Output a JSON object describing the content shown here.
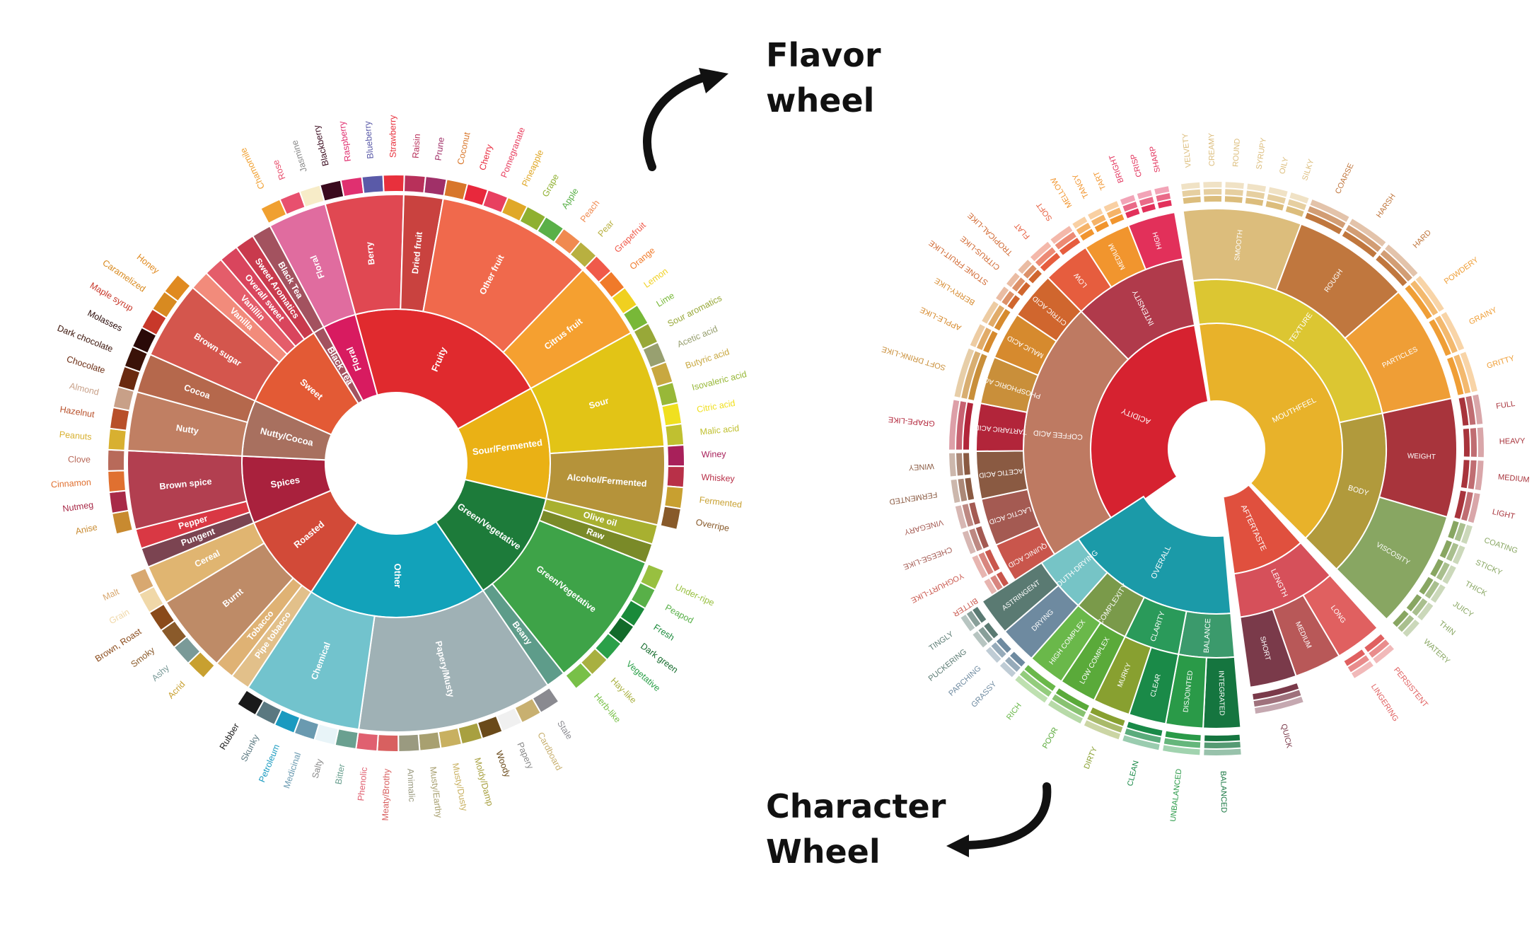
{
  "captions": {
    "flavor_line1": "Flavor",
    "flavor_line2": "wheel",
    "character_line1": "Character",
    "character_line2": "Wheel"
  },
  "flavor_wheel": {
    "groups": [
      {
        "label": "Floral",
        "color": "#d81b60",
        "subs": [
          {
            "label": "Floral",
            "color": "#e06c9f",
            "leaves": [
              {
                "label": "Chamomile",
                "color": "#f0a030"
              },
              {
                "label": "Rose",
                "color": "#e8506e"
              },
              {
                "label": "Jasmine",
                "color": "#f7ecc8"
              }
            ]
          }
        ]
      },
      {
        "label": "Fruity",
        "color": "#e02a2e",
        "subs": [
          {
            "label": "Berry",
            "color": "#e04852",
            "leaves": [
              {
                "label": "Blackberry",
                "color": "#3a0a1e"
              },
              {
                "label": "Raspberry",
                "color": "#e03070"
              },
              {
                "label": "Blueberry",
                "color": "#5a5aa8"
              },
              {
                "label": "Strawberry",
                "color": "#e8303c"
              }
            ]
          },
          {
            "label": "Dried fruit",
            "color": "#c9423f",
            "leaves": [
              {
                "label": "Raisin",
                "color": "#b8305a"
              },
              {
                "label": "Prune",
                "color": "#a03068"
              }
            ]
          },
          {
            "label": "Other fruit",
            "color": "#f0694c",
            "leaves": [
              {
                "label": "Coconut",
                "color": "#d8762a"
              },
              {
                "label": "Cherry",
                "color": "#e8283c"
              },
              {
                "label": "Pomegranate",
                "color": "#e84060"
              },
              {
                "label": "Pineapple",
                "color": "#e0a828"
              },
              {
                "label": "Grape",
                "color": "#8fb030"
              },
              {
                "label": "Apple",
                "color": "#5ab048"
              },
              {
                "label": "Peach",
                "color": "#f08a50"
              },
              {
                "label": "Pear",
                "color": "#b8b040"
              }
            ]
          },
          {
            "label": "Citrus fruit",
            "color": "#f5a030",
            "leaves": [
              {
                "label": "Grapefruit",
                "color": "#f05a4a"
              },
              {
                "label": "Orange",
                "color": "#f07a2a"
              },
              {
                "label": "Lemon",
                "color": "#f0d020"
              },
              {
                "label": "Lime",
                "color": "#78b838"
              }
            ]
          }
        ]
      },
      {
        "label": "Sour/Fermented",
        "color": "#eab115",
        "subs": [
          {
            "label": "Sour",
            "color": "#e2c416",
            "leaves": [
              {
                "label": "Sour aromatics",
                "color": "#98a838"
              },
              {
                "label": "Acetic acid",
                "color": "#98a070"
              },
              {
                "label": "Butyric acid",
                "color": "#c8a840"
              },
              {
                "label": "Isovaleric acid",
                "color": "#98b838"
              },
              {
                "label": "Citric acid",
                "color": "#f0e020"
              },
              {
                "label": "Malic acid",
                "color": "#c0c030"
              }
            ]
          },
          {
            "label": "Alcohol/Fermented",
            "color": "#b5933a",
            "leaves": [
              {
                "label": "Winey",
                "color": "#a8205a"
              },
              {
                "label": "Whiskey",
                "color": "#b83048"
              },
              {
                "label": "Fermented",
                "color": "#c8a030"
              },
              {
                "label": "Overripe",
                "color": "#885a2a"
              }
            ]
          }
        ]
      },
      {
        "label": "Green/Vegetative",
        "color": "#1d7b3a",
        "subs": [
          {
            "label": "Olive oil",
            "color": "#a8b030",
            "leaves": []
          },
          {
            "label": "Raw",
            "color": "#7a8a28",
            "leaves": []
          },
          {
            "label": "Green/Vegetative",
            "color": "#3ea348",
            "leaves": [
              {
                "label": "Under-ripe",
                "color": "#98c040"
              },
              {
                "label": "Peapod",
                "color": "#58b048"
              },
              {
                "label": "Fresh",
                "color": "#1a8a3a"
              },
              {
                "label": "Dark green",
                "color": "#126a2a"
              },
              {
                "label": "Vegetative",
                "color": "#2aa048"
              },
              {
                "label": "Hay-like",
                "color": "#a8b040"
              },
              {
                "label": "Herb-like",
                "color": "#78c048"
              }
            ]
          },
          {
            "label": "Beany",
            "color": "#5e9c8a",
            "leaves": []
          }
        ]
      },
      {
        "label": "Other",
        "color": "#12a2ba",
        "subs": [
          {
            "label": "Papery/Musty",
            "color": "#9fb1b5",
            "leaves": [
              {
                "label": "Stale",
                "color": "#8a8a90"
              },
              {
                "label": "Cardboard",
                "color": "#c8b070"
              },
              {
                "label": "Papery",
                "color": "#f0f0f0"
              },
              {
                "label": "Woody",
                "color": "#6a4a1a"
              },
              {
                "label": "Moldy/Damp",
                "color": "#a8a040"
              },
              {
                "label": "Musty/Dusty",
                "color": "#c8b060"
              },
              {
                "label": "Musty/Earthy",
                "color": "#a8a070"
              },
              {
                "label": "Animalic",
                "color": "#9a9a80"
              },
              {
                "label": "Meaty/Brothy",
                "color": "#d86060"
              },
              {
                "label": "Phenolic",
                "color": "#e06070"
              }
            ]
          },
          {
            "label": "Chemical",
            "color": "#72c3cd",
            "leaves": [
              {
                "label": "Bitter",
                "color": "#6aa090"
              },
              {
                "label": "Salty",
                "color": "#e8f4f8"
              },
              {
                "label": "Medicinal",
                "color": "#6a9ab0"
              },
              {
                "label": "Petroleum",
                "color": "#1a9ac0"
              },
              {
                "label": "Skunky",
                "color": "#5a7880"
              },
              {
                "label": "Rubber",
                "color": "#1a1a1a"
              }
            ]
          }
        ]
      },
      {
        "label": "Roasted",
        "color": "#d24a38",
        "subs": [
          {
            "label": "Pipe tobacco",
            "color": "#e2c08a",
            "leaves": []
          },
          {
            "label": "Tobacco",
            "color": "#dfb274",
            "leaves": []
          },
          {
            "label": "Burnt",
            "color": "#be8b67",
            "leaves": [
              {
                "label": "Acrid",
                "color": "#c8a030"
              },
              {
                "label": "Ashy",
                "color": "#7a9a98"
              },
              {
                "label": "Smoky",
                "color": "#8a5a2a"
              },
              {
                "label": "Brown, Roast",
                "color": "#8a4a1a"
              }
            ]
          },
          {
            "label": "Cereal",
            "color": "#e0b571",
            "leaves": [
              {
                "label": "Grain",
                "color": "#f0d8a8"
              },
              {
                "label": "Malt",
                "color": "#d8a870"
              }
            ]
          }
        ]
      },
      {
        "label": "Spices",
        "color": "#a9213d",
        "subs": [
          {
            "label": "Pungent",
            "color": "#7b4451",
            "leaves": []
          },
          {
            "label": "Pepper",
            "color": "#d93844",
            "leaves": []
          },
          {
            "label": "Brown spice",
            "color": "#b23f50",
            "leaves": [
              {
                "label": "Anise",
                "color": "#c88a30"
              },
              {
                "label": "Nutmeg",
                "color": "#a82a48"
              },
              {
                "label": "Cinnamon",
                "color": "#e07030"
              },
              {
                "label": "Clove",
                "color": "#b86a5a"
              }
            ]
          }
        ]
      },
      {
        "label": "Nutty/Cocoa",
        "color": "#a8705f",
        "subs": [
          {
            "label": "Nutty",
            "color": "#c07f63",
            "leaves": [
              {
                "label": "Peanuts",
                "color": "#d8b030"
              },
              {
                "label": "Hazelnut",
                "color": "#b8502a"
              },
              {
                "label": "Almond",
                "color": "#c8a088"
              }
            ]
          },
          {
            "label": "Cocoa",
            "color": "#b5684c",
            "leaves": [
              {
                "label": "Chocolate",
                "color": "#6a2a10"
              },
              {
                "label": "Dark chocolate",
                "color": "#3a1208"
              }
            ]
          }
        ]
      },
      {
        "label": "Sweet",
        "color": "#e35a35",
        "subs": [
          {
            "label": "Brown sugar",
            "color": "#d4564d",
            "leaves": [
              {
                "label": "Molasses",
                "color": "#2a0a08"
              },
              {
                "label": "Maple syrup",
                "color": "#c8382a"
              },
              {
                "label": "Caramelized",
                "color": "#d88a20"
              },
              {
                "label": "Honey",
                "color": "#e08a20"
              }
            ]
          },
          {
            "label": "Vanilla",
            "color": "#f28b7b",
            "leaves": []
          },
          {
            "label": "Vanillin",
            "color": "#e45d6a",
            "leaves": []
          },
          {
            "label": "Overall sweet",
            "color": "#d9455d",
            "leaves": []
          },
          {
            "label": "Sweet Aromatics",
            "color": "#c93a4d",
            "leaves": []
          }
        ]
      },
      {
        "label": "Black Tea",
        "color": "#a3525f",
        "subs": [
          {
            "label": "Black Tea",
            "color": "#a3525f",
            "leaves": []
          }
        ]
      }
    ]
  },
  "character_wheel": {
    "groups": [
      {
        "label": "ACIDITY",
        "color": "#d62230",
        "subs": [
          {
            "label": "COFFEE ACID",
            "color": "#be7a62",
            "leaves": [
              {
                "label": "QUINIC ACID",
                "color": "#c9564c",
                "descriptors": [
                  "BITTER",
                  "YOGHURT-LIKE"
                ]
              },
              {
                "label": "LACTIC ACID",
                "color": "#a45a52",
                "descriptors": [
                  "CHEESE-LIKE",
                  "VINEGARY"
                ]
              },
              {
                "label": "ACETIC ACID",
                "color": "#8a5a42",
                "descriptors": [
                  "FERMENTED",
                  "WINEY"
                ]
              },
              {
                "label": "TARTARIC ACID",
                "color": "#b2253a",
                "descriptors": [
                  "GRAPE-LIKE"
                ]
              },
              {
                "label": "PHOSPHORIC ACID",
                "color": "#c98f3a",
                "descriptors": [
                  "SOFT DRINK-LIKE"
                ]
              },
              {
                "label": "MALIC ACID",
                "color": "#d68a2e",
                "descriptors": [
                  "APPLE-LIKE",
                  "BERRY-LIKE"
                ]
              },
              {
                "label": "CITRIC ACID",
                "color": "#d0662e",
                "descriptors": [
                  "STONE FRUIT-LIKE",
                  "CITRUS-LIKE",
                  "TROPICAL-LIKE"
                ]
              }
            ]
          },
          {
            "label": "INTENSITY",
            "color": "#b03a4b",
            "leaves": [
              {
                "label": "LOW",
                "color": "#e65d3e",
                "descriptors": [
                  "FLAT",
                  "SOFT"
                ]
              },
              {
                "label": "MEDIUM",
                "color": "#f1952e",
                "descriptors": [
                  "MELLOW",
                  "TANGY",
                  "TART"
                ]
              },
              {
                "label": "HIGH",
                "color": "#e2305a",
                "descriptors": [
                  "BRIGHT",
                  "CRISP",
                  "SHARP"
                ]
              }
            ]
          }
        ]
      },
      {
        "label": "MOUTHFEEL",
        "color": "#e8b22a",
        "subs": [
          {
            "label": "TEXTURE",
            "color": "#dcc632",
            "leaves": [
              {
                "label": "SMOOTH",
                "color": "#dcbd7c",
                "descriptors": [
                  "VELVETY",
                  "CREAMY",
                  "ROUND",
                  "SYRUPY",
                  "OILY",
                  "SILKY"
                ]
              },
              {
                "label": "ROUGH",
                "color": "#c0773e",
                "descriptors": [
                  "COARSE",
                  "HARSH",
                  "HARD"
                ]
              },
              {
                "label": "PARTICLES",
                "color": "#ef9e36",
                "descriptors": [
                  "POWDERY",
                  "GRAINY",
                  "GRITTY"
                ]
              }
            ]
          },
          {
            "label": "BODY",
            "color": "#b19a3c",
            "leaves": [
              {
                "label": "WEIGHT",
                "color": "#a8343c",
                "descriptors": [
                  "FULL",
                  "HEAVY",
                  "MEDIUM",
                  "LIGHT"
                ]
              },
              {
                "label": "VISCOSITY",
                "color": "#88a662",
                "descriptors": [
                  "COATING",
                  "STICKY",
                  "THICK",
                  "JUICY",
                  "THIN",
                  "WATERY"
                ]
              }
            ]
          }
        ]
      },
      {
        "label": "AFTERTASTE",
        "color": "#e0503e",
        "subs": [
          {
            "label": "LENGTH",
            "color": "#d6505a",
            "leaves": [
              {
                "label": "LONG",
                "color": "#e06060",
                "descriptors": [
                  "PERSISTENT",
                  "LINGERING"
                ]
              },
              {
                "label": "MEDIUM",
                "color": "#b85858",
                "descriptors": []
              },
              {
                "label": "SHORT",
                "color": "#7a3a4a",
                "descriptors": [
                  "QUICK"
                ]
              }
            ]
          }
        ]
      },
      {
        "label": "OVERALL",
        "color": "#1b9aa8",
        "subs": [
          {
            "label": "BALANCE",
            "color": "#3b9a6c",
            "leaves": [
              {
                "label": "INTEGRATED",
                "color": "#15753f",
                "descriptors": [
                  "BALANCED"
                ]
              },
              {
                "label": "DISJOINTED",
                "color": "#2a9a48",
                "descriptors": [
                  "UNBALANCED"
                ]
              }
            ]
          },
          {
            "label": "CLARITY",
            "color": "#2a9a5a",
            "leaves": [
              {
                "label": "CLEAR",
                "color": "#1a8a48",
                "descriptors": [
                  "CLEAN"
                ]
              },
              {
                "label": "MURKY",
                "color": "#88a030",
                "descriptors": [
                  "DIRTY"
                ]
              }
            ]
          },
          {
            "label": "COMPLEXITY",
            "color": "#7a9a4a",
            "leaves": [
              {
                "label": "LOW COMPLEX",
                "color": "#5aaa3a",
                "descriptors": [
                  "POOR"
                ]
              },
              {
                "label": "HIGH COMPLEX",
                "color": "#6ab84a",
                "descriptors": [
                  "RICH"
                ]
              }
            ]
          },
          {
            "label": "MOUTH-DRYING",
            "color": "#76c4c6",
            "leaves": [
              {
                "label": "DRYING",
                "color": "#6e8aa0",
                "descriptors": [
                  "GRASSY",
                  "PARCHING"
                ]
              },
              {
                "label": "ASTRINGENT",
                "color": "#5a7a72",
                "descriptors": [
                  "PUCKERING",
                  "TINGLY"
                ]
              }
            ]
          }
        ]
      }
    ]
  }
}
